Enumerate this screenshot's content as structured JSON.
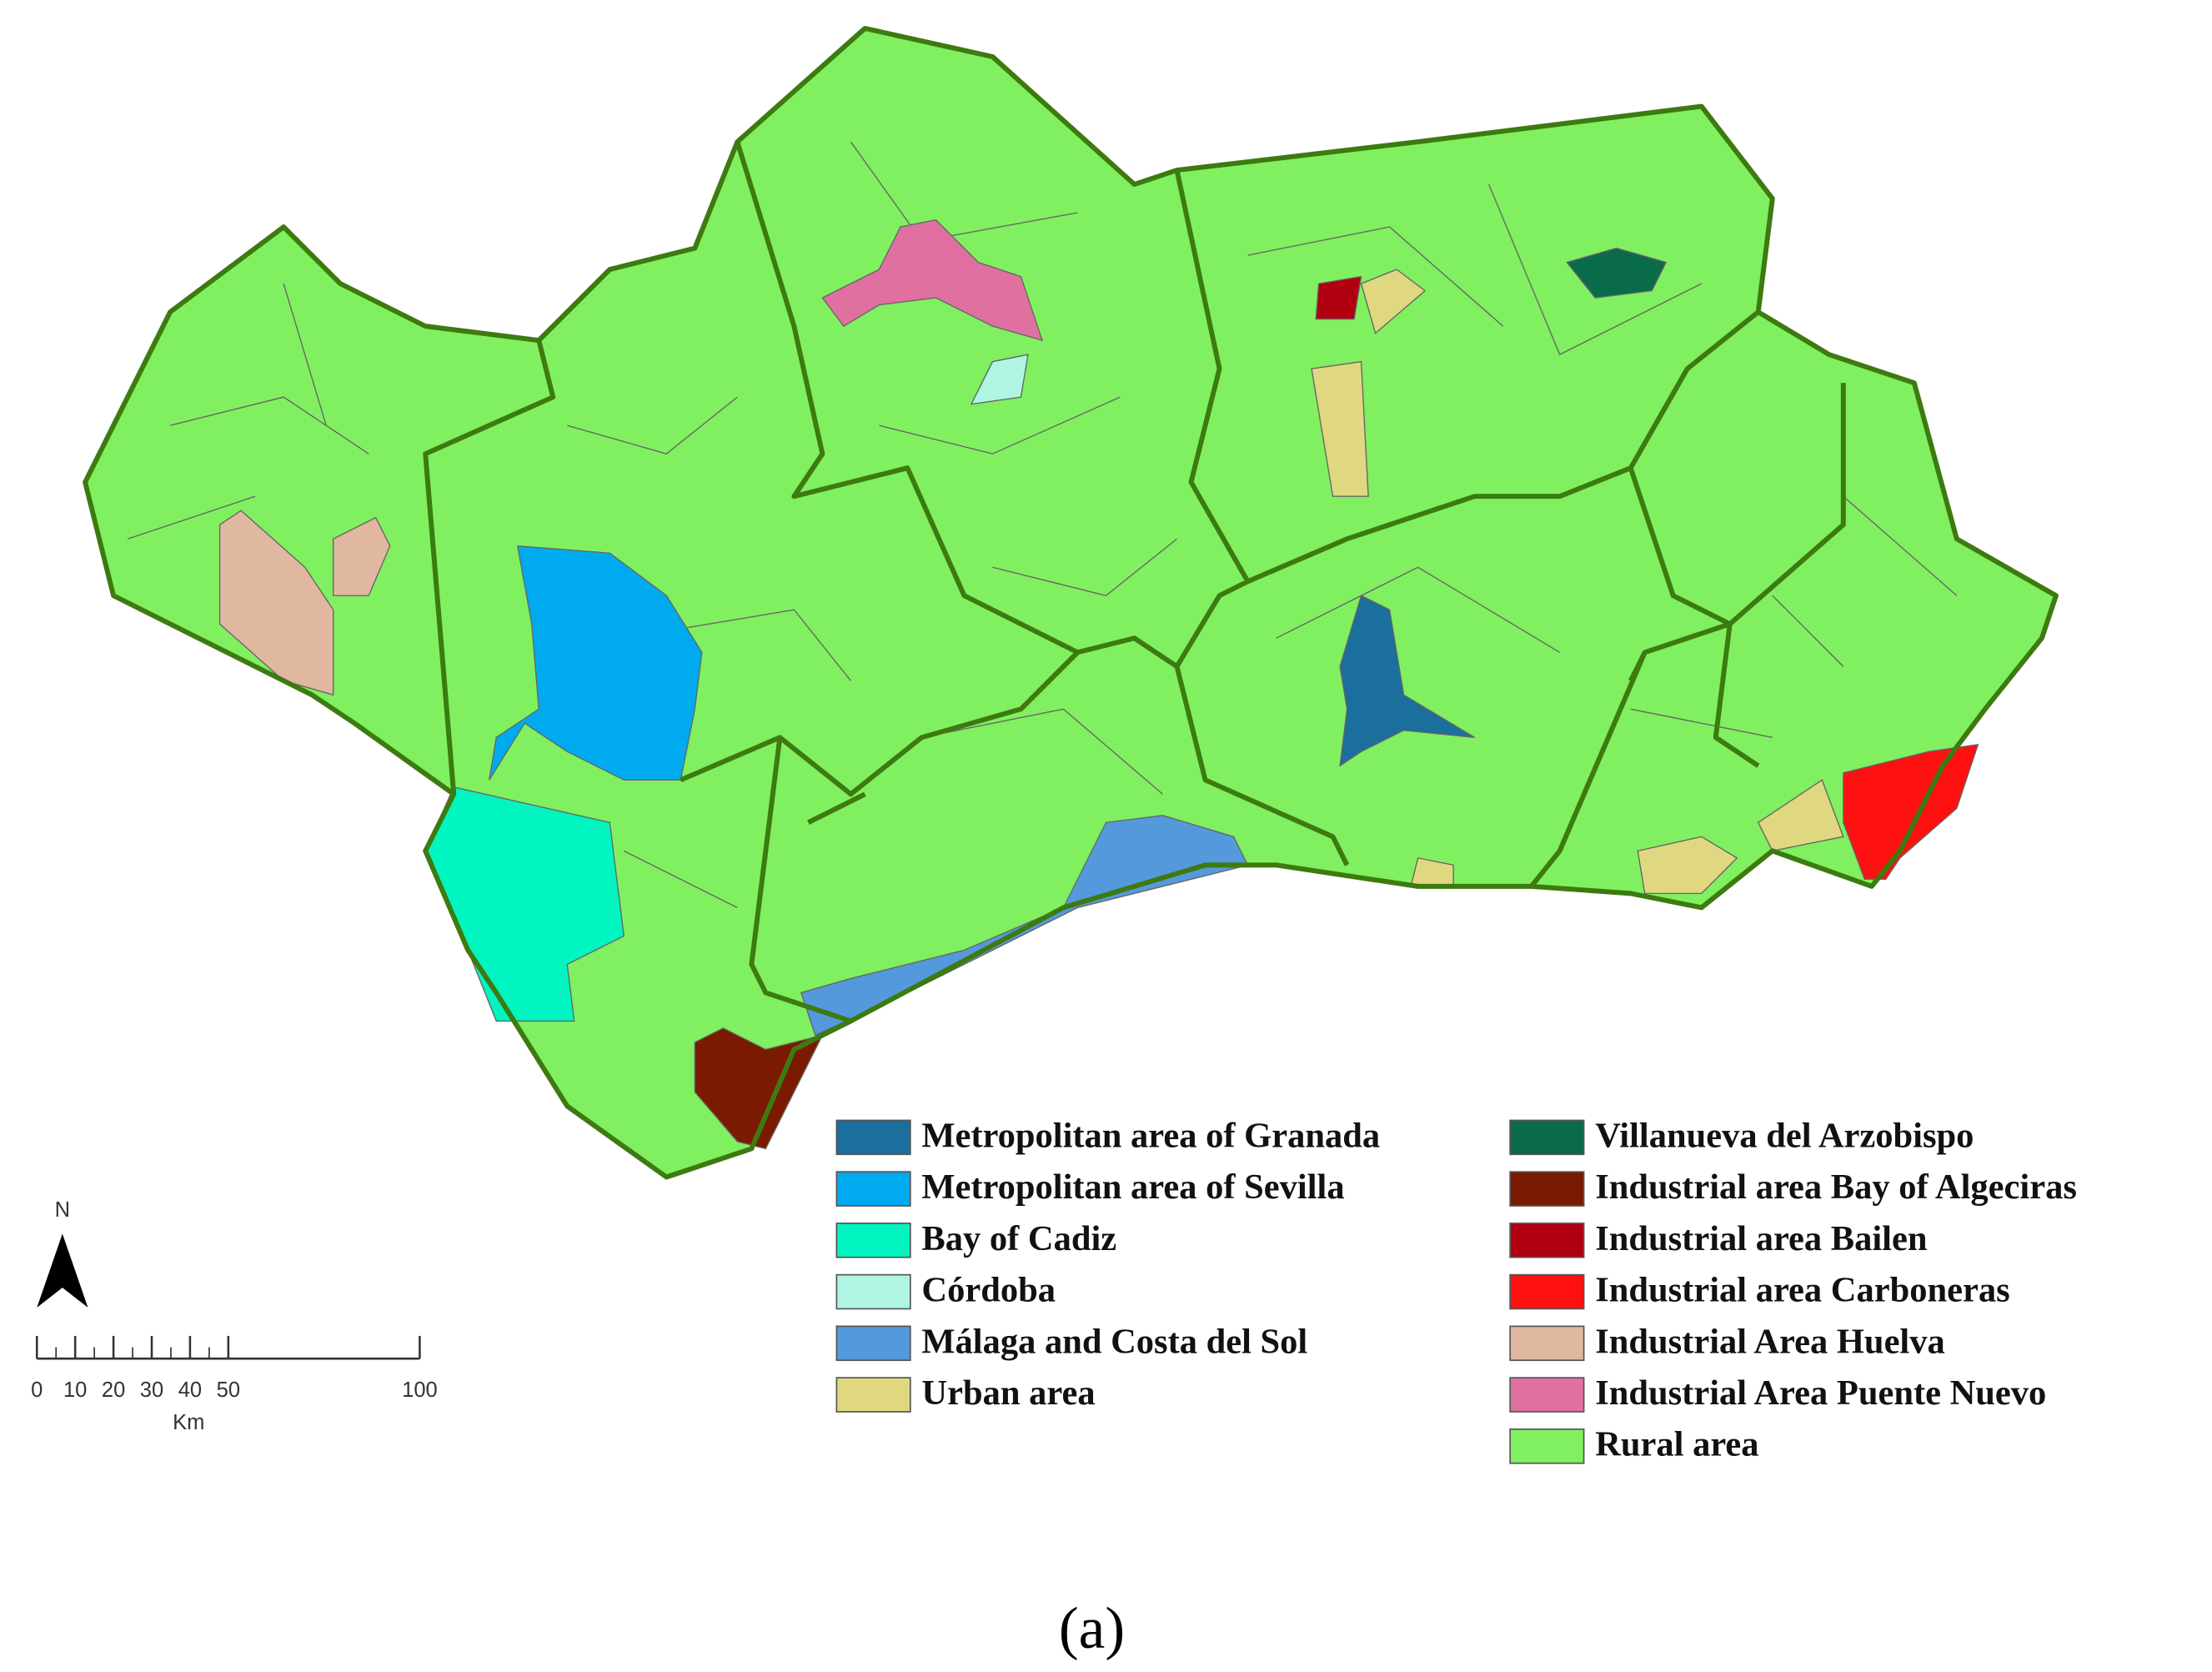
{
  "legend": [
    {
      "label": "Metropolitan area of Granada",
      "color": "#1b6f9c"
    },
    {
      "label": "Metropolitan area of Sevilla",
      "color": "#00aaee"
    },
    {
      "label": "Bay of Cadiz",
      "color": "#00f5c0"
    },
    {
      "label": "Córdoba",
      "color": "#b0f5e4"
    },
    {
      "label": "Málaga and Costa del Sol",
      "color": "#5599dd"
    },
    {
      "label": "Urban area",
      "color": "#dfd880"
    },
    {
      "label": "Villanueva del Arzobispo",
      "color": "#0a6b4a"
    },
    {
      "label": "Industrial area Bay of Algeciras",
      "color": "#7a1a00"
    },
    {
      "label": "Industrial area Bailen",
      "color": "#b00010"
    },
    {
      "label": "Industrial area Carboneras",
      "color": "#ff1010"
    },
    {
      "label": "Industrial Area Huelva",
      "color": "#e0b8a0"
    },
    {
      "label": "Industrial Area Puente Nuevo",
      "color": "#e070a0"
    },
    {
      "label": "Rural area",
      "color": "#80f060"
    }
  ],
  "north": "N",
  "scale_bar": {
    "unit": "Km",
    "ticks": [
      0,
      10,
      20,
      30,
      40,
      50,
      100
    ]
  },
  "caption": "(a)"
}
